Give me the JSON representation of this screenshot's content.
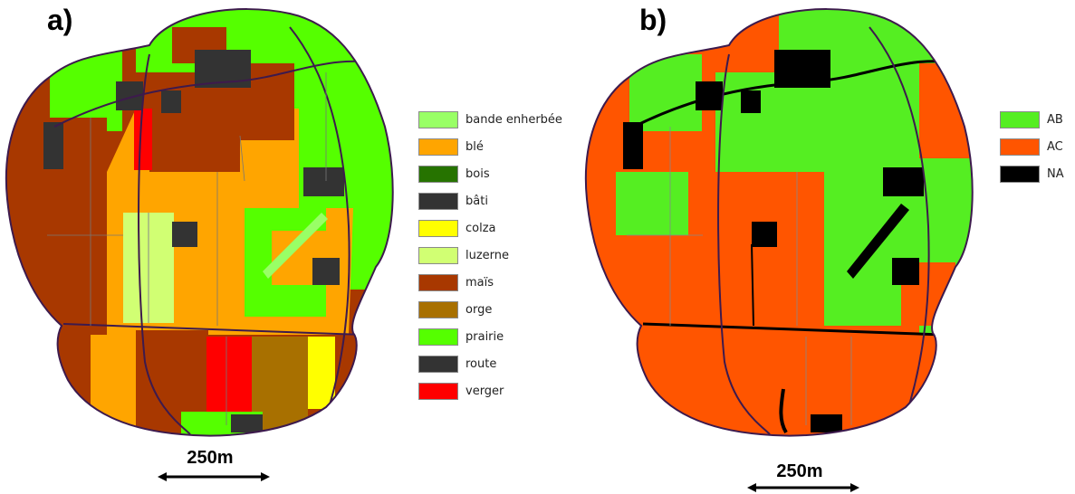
{
  "panels": [
    {
      "label": "a)",
      "scale_label": "250m"
    },
    {
      "label": "b)",
      "scale_label": "250m"
    }
  ],
  "legend_a": [
    {
      "label": "bande enherbée",
      "color": "#99ff66"
    },
    {
      "label": "blé",
      "color": "#ffa500"
    },
    {
      "label": "bois",
      "color": "#267300"
    },
    {
      "label": "bâti",
      "color": "#333333"
    },
    {
      "label": "colza",
      "color": "#ffff00"
    },
    {
      "label": "luzerne",
      "color": "#d1ff73"
    },
    {
      "label": "maïs",
      "color": "#a83800"
    },
    {
      "label": "orge",
      "color": "#a87000"
    },
    {
      "label": "prairie",
      "color": "#55ff00"
    },
    {
      "label": "route",
      "color": "#333333"
    },
    {
      "label": "verger",
      "color": "#ff0000"
    }
  ],
  "legend_b": [
    {
      "label": "AB",
      "color": "#55ee22"
    },
    {
      "label": "AC",
      "color": "#ff5500"
    },
    {
      "label": "NA",
      "color": "#000000"
    }
  ]
}
